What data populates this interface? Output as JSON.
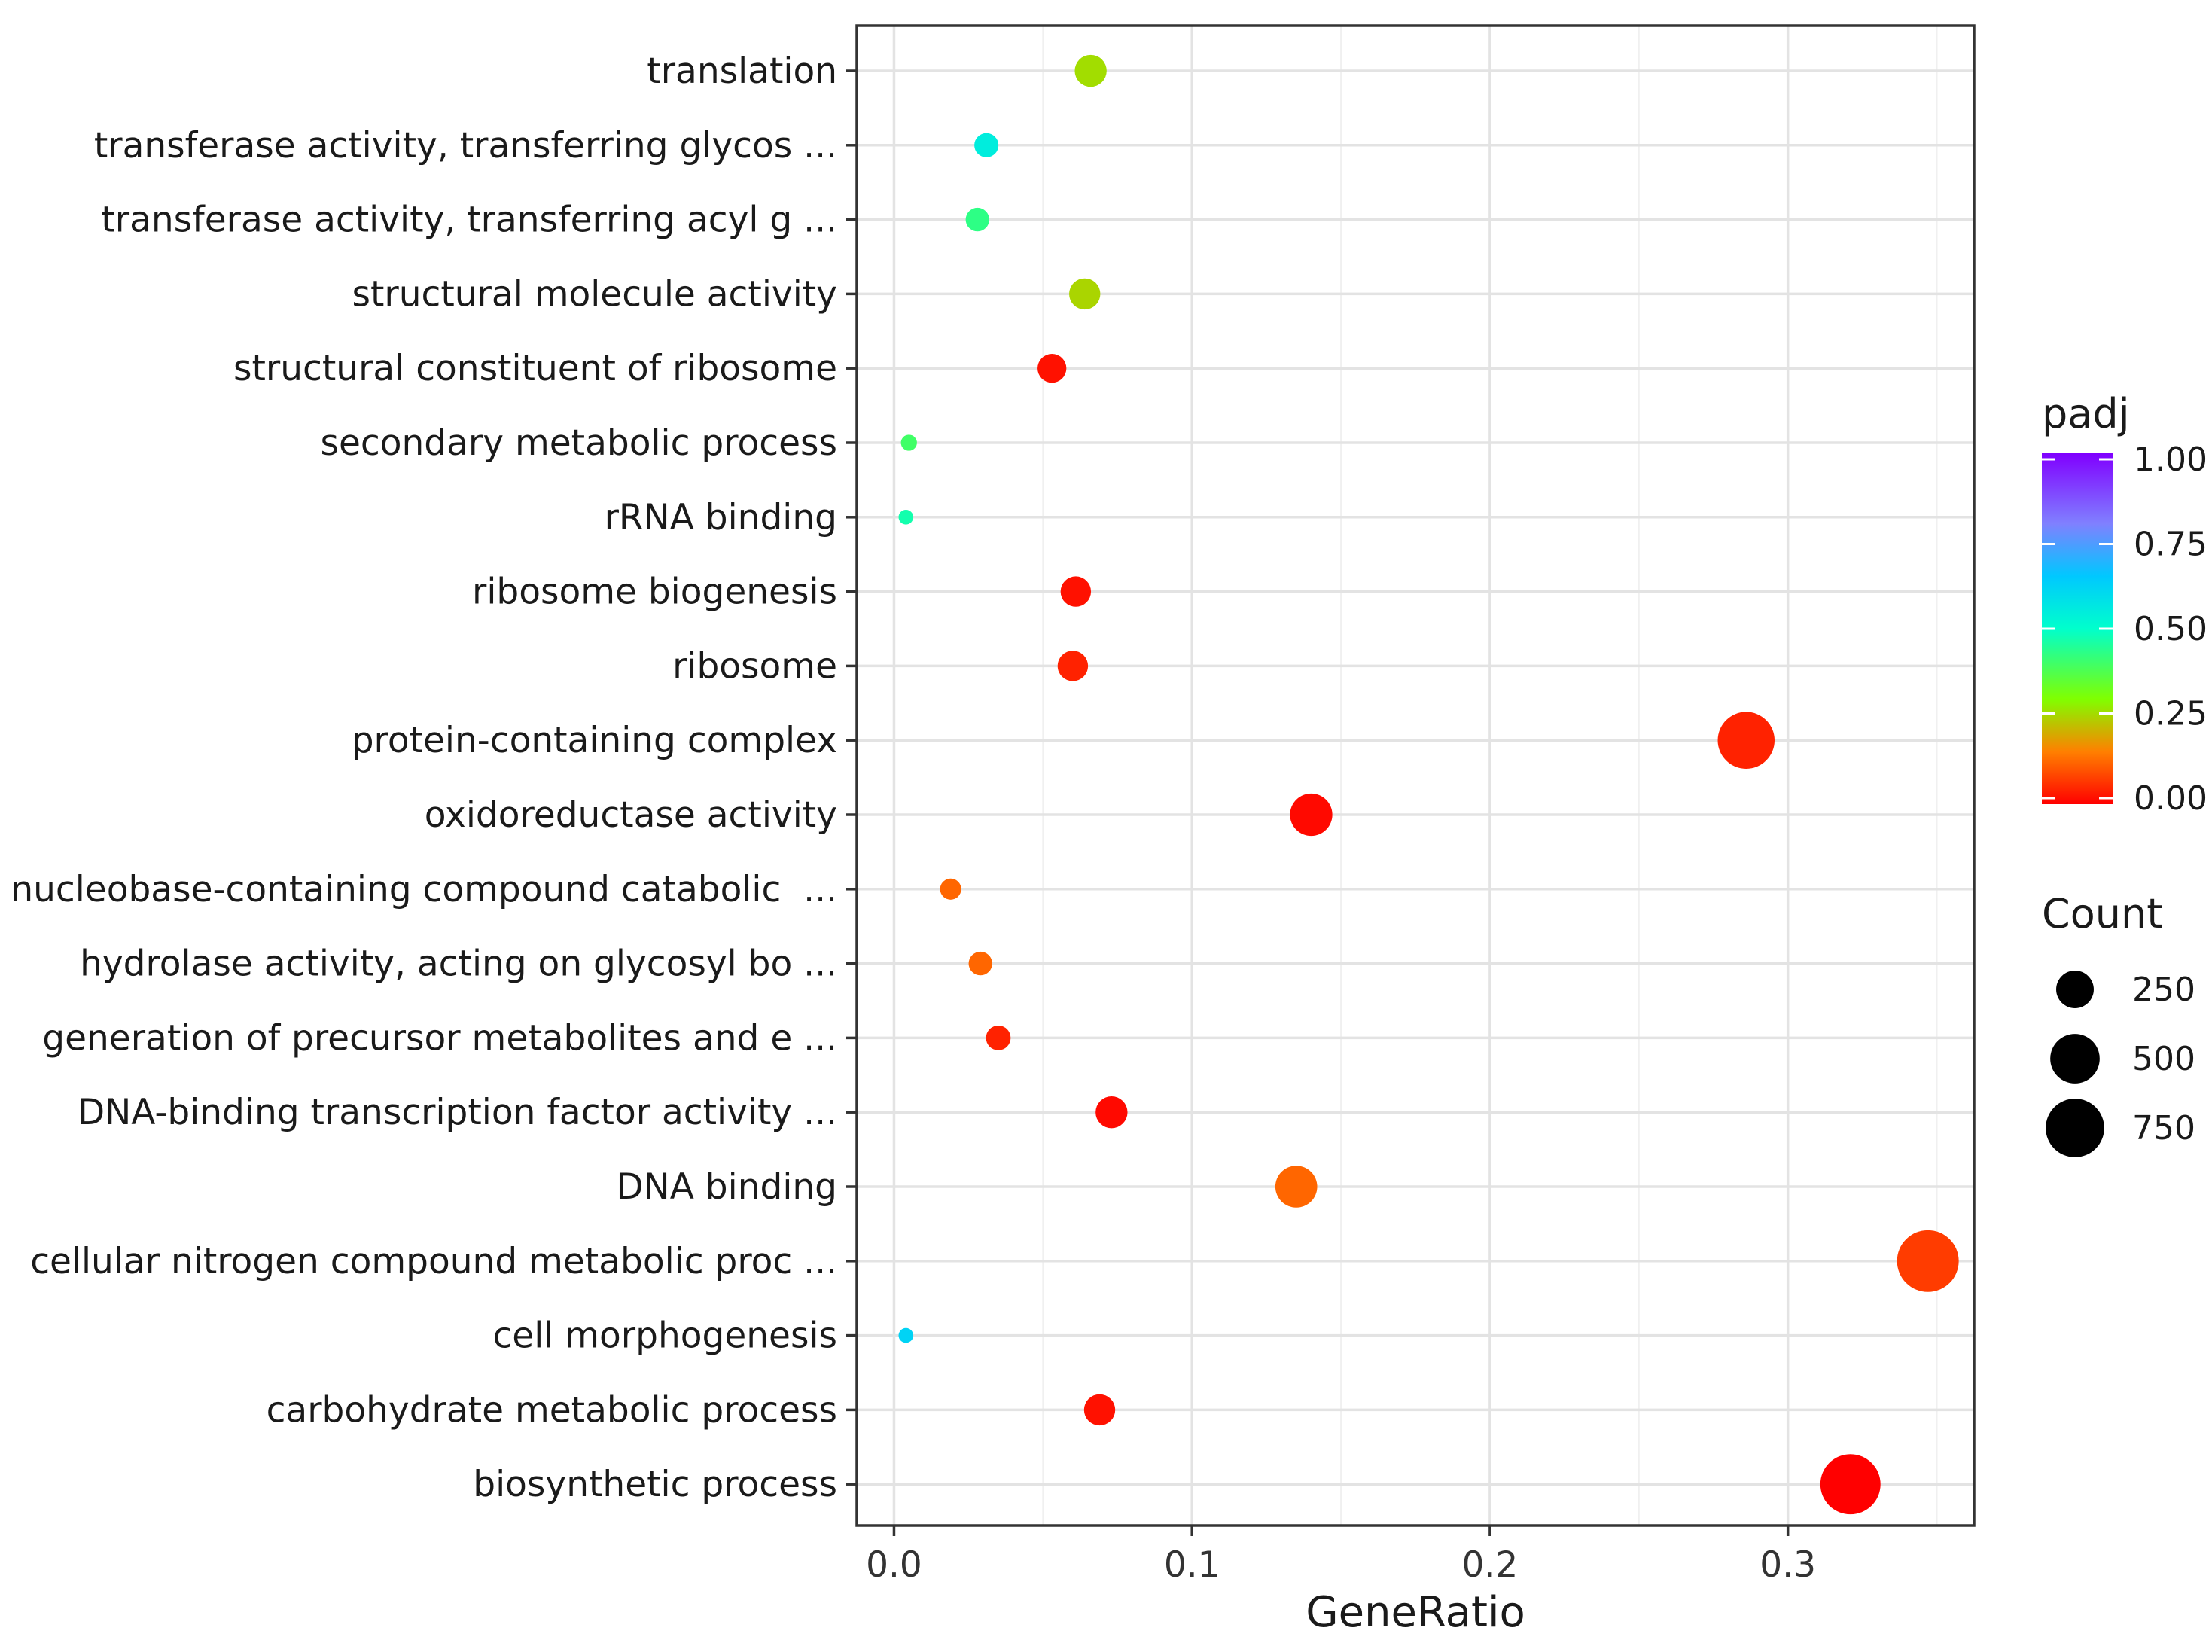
{
  "chart_data": {
    "type": "scatter",
    "xlabel": "GeneRatio",
    "ylabel": "",
    "xlim": [
      -0.0125,
      0.3625
    ],
    "xticks": [
      0.0,
      0.1,
      0.2,
      0.3
    ],
    "xtick_labels": [
      "0.0",
      "0.1",
      "0.2",
      "0.3"
    ],
    "grid": true,
    "categories": [
      "biosynthetic process",
      "carbohydrate metabolic process",
      "cell morphogenesis",
      "cellular nitrogen compound metabolic proc ...",
      "DNA binding",
      "DNA-binding transcription factor activity ...",
      "generation of precursor metabolites and e ...",
      "hydrolase activity, acting on glycosyl bo ...",
      "nucleobase-containing compound catabolic  ...",
      "oxidoreductase activity",
      "protein-containing complex",
      "ribosome",
      "ribosome biogenesis",
      "rRNA binding",
      "secondary metabolic process",
      "structural constituent of ribosome",
      "structural molecule activity",
      "transferase activity, transferring acyl g ...",
      "transferase activity, transferring glycos ...",
      "translation"
    ],
    "points": [
      {
        "term": "biosynthetic process",
        "gene_ratio": 0.321,
        "padj": 0.0,
        "count": 800
      },
      {
        "term": "carbohydrate metabolic process",
        "gene_ratio": 0.069,
        "padj": 0.02,
        "count": 150
      },
      {
        "term": "cell morphogenesis",
        "gene_ratio": 0.004,
        "padj": 0.62,
        "count": 10
      },
      {
        "term": "cellular nitrogen compound metabolic proc ...",
        "gene_ratio": 0.347,
        "padj": 0.07,
        "count": 850
      },
      {
        "term": "DNA binding",
        "gene_ratio": 0.135,
        "padj": 0.12,
        "count": 330
      },
      {
        "term": "DNA-binding transcription factor activity ...",
        "gene_ratio": 0.073,
        "padj": 0.01,
        "count": 160
      },
      {
        "term": "generation of precursor metabolites and e ...",
        "gene_ratio": 0.035,
        "padj": 0.04,
        "count": 75
      },
      {
        "term": "hydrolase activity, acting on glycosyl bo ...",
        "gene_ratio": 0.029,
        "padj": 0.12,
        "count": 65
      },
      {
        "term": "nucleobase-containing compound catabolic  ...",
        "gene_ratio": 0.019,
        "padj": 0.12,
        "count": 45
      },
      {
        "term": "oxidoreductase activity",
        "gene_ratio": 0.14,
        "padj": 0.01,
        "count": 340
      },
      {
        "term": "protein-containing complex",
        "gene_ratio": 0.286,
        "padj": 0.04,
        "count": 700
      },
      {
        "term": "ribosome",
        "gene_ratio": 0.06,
        "padj": 0.04,
        "count": 140
      },
      {
        "term": "ribosome biogenesis",
        "gene_ratio": 0.061,
        "padj": 0.02,
        "count": 140
      },
      {
        "term": "rRNA binding",
        "gene_ratio": 0.004,
        "padj": 0.47,
        "count": 10
      },
      {
        "term": "secondary metabolic process",
        "gene_ratio": 0.005,
        "padj": 0.4,
        "count": 15
      },
      {
        "term": "structural constituent of ribosome",
        "gene_ratio": 0.053,
        "padj": 0.02,
        "count": 120
      },
      {
        "term": "structural molecule activity",
        "gene_ratio": 0.064,
        "padj": 0.25,
        "count": 150
      },
      {
        "term": "transferase activity, transferring acyl g ...",
        "gene_ratio": 0.028,
        "padj": 0.43,
        "count": 65
      },
      {
        "term": "transferase activity, transferring glycos ...",
        "gene_ratio": 0.031,
        "padj": 0.55,
        "count": 70
      },
      {
        "term": "translation",
        "gene_ratio": 0.066,
        "padj": 0.26,
        "count": 160
      }
    ],
    "color_legend": {
      "title": "padj",
      "ticks": [
        0.0,
        0.25,
        0.5,
        0.75,
        1.0
      ],
      "tick_labels": [
        "0.00",
        "0.25",
        "0.50",
        "0.75",
        "1.00"
      ],
      "gradient": [
        "#ff0000",
        "#ff8000",
        "#80ff00",
        "#00ffcc",
        "#00c8ff",
        "#8080ff",
        "#8000ff"
      ]
    },
    "size_legend": {
      "title": "Count",
      "values": [
        250,
        500,
        750
      ],
      "labels": [
        "250",
        "500",
        "750"
      ]
    },
    "legend_position": "right"
  }
}
